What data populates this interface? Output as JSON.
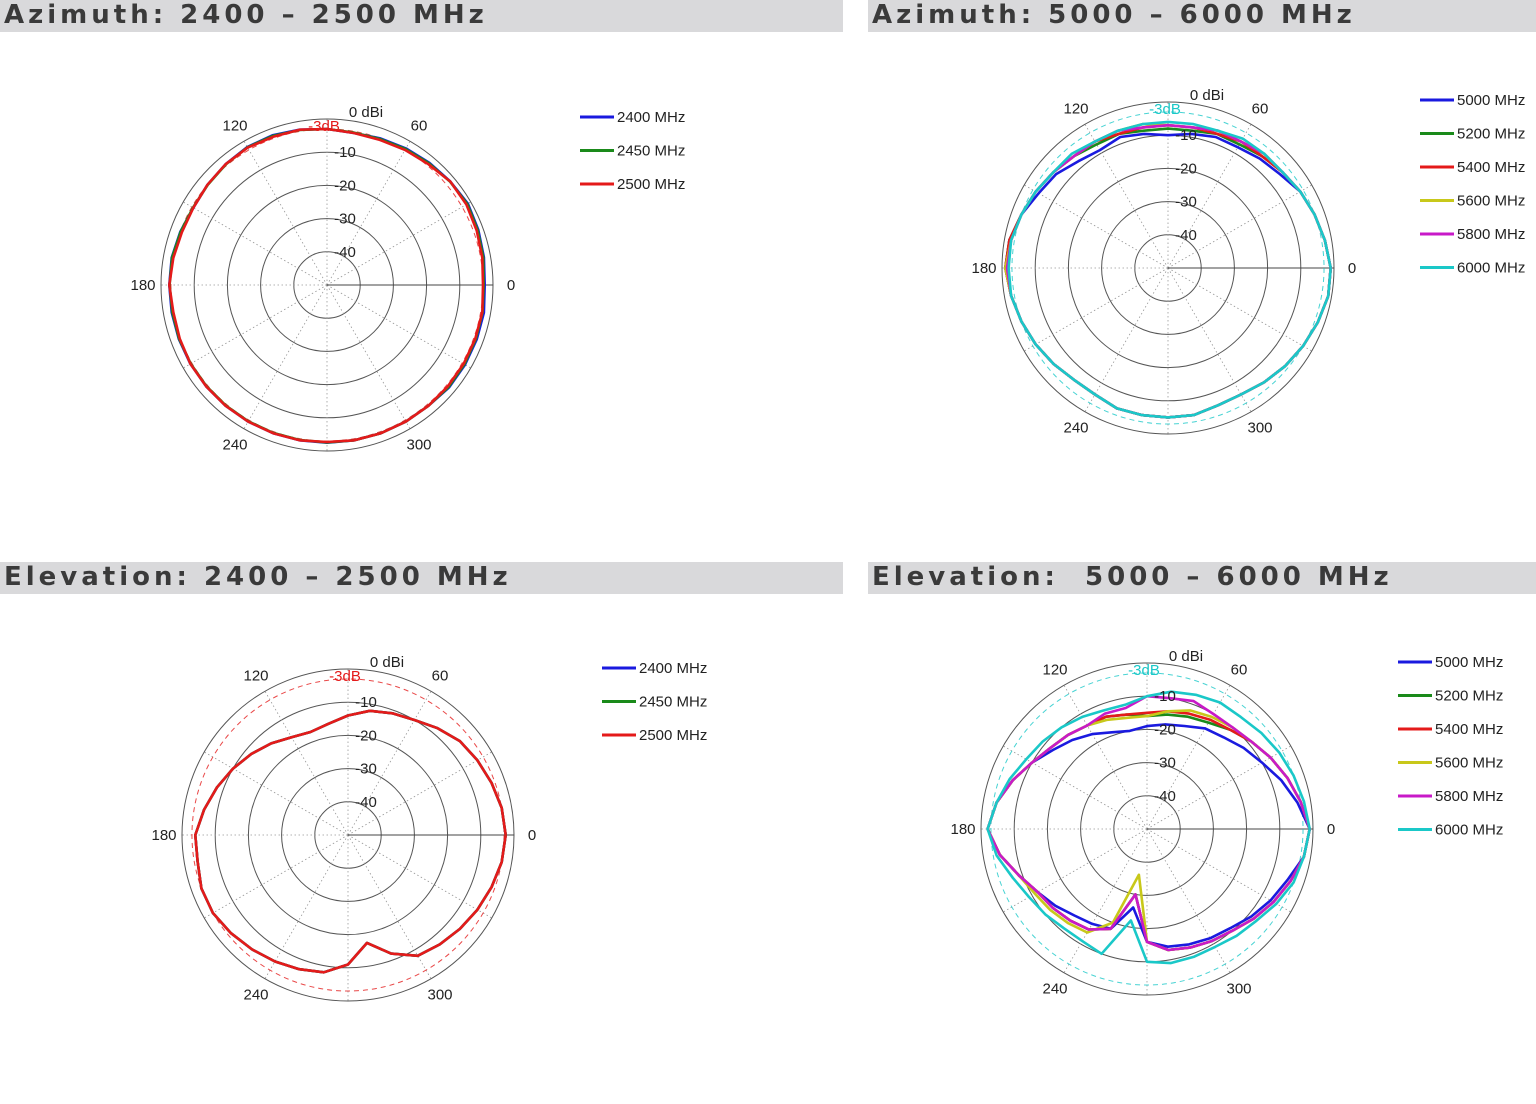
{
  "chart_data": [
    {
      "type": "polar-line",
      "title": "Azimuth: 2400 – 2500 MHz",
      "radial_unit_label": "0 dBi",
      "radial_ticks": [
        "-10",
        "-20",
        "-30",
        "-40"
      ],
      "angle_ticks": [
        "0",
        "60",
        "120",
        "180",
        "240",
        "300"
      ],
      "reference_label": "-3dB",
      "reference_value": -3,
      "rlim": [
        -50,
        0
      ],
      "grid": true,
      "legend_position": "right",
      "series": [
        {
          "name": "2400 MHz",
          "color": "#1a1adf",
          "values": [
            -2.5,
            -2,
            -1.5,
            -1,
            -1.5,
            -2,
            -2.5,
            -3,
            -3.5,
            -3,
            -2.5,
            -2,
            -2,
            -2.5,
            -3,
            -3.5,
            -3,
            -2.5,
            -2.5,
            -2.5,
            -2.5,
            -2.5,
            -2.5,
            -2.5,
            -2.5,
            -2.5,
            -2.5,
            -2.5,
            -2.5,
            -2.5,
            -2.5,
            -2.5,
            -2,
            -2,
            -2,
            -2
          ]
        },
        {
          "name": "2450 MHz",
          "color": "#1a8a1a",
          "values": [
            -2.8,
            -2.2,
            -1.7,
            -1.2,
            -1.6,
            -2.2,
            -2.7,
            -3.2,
            -3.4,
            -3,
            -2.6,
            -2.2,
            -2.1,
            -2.6,
            -3.1,
            -3.4,
            -3.1,
            -2.6,
            -2.6,
            -2.7,
            -2.6,
            -2.6,
            -2.6,
            -2.6,
            -2.6,
            -2.6,
            -2.6,
            -2.6,
            -2.5,
            -2.5,
            -2.5,
            -2.5,
            -2.2,
            -2.2,
            -2.3,
            -2.4
          ]
        },
        {
          "name": "2500 MHz",
          "color": "#e41a1a",
          "values": [
            -3,
            -2.5,
            -2,
            -1.5,
            -1.5,
            -2.5,
            -3,
            -3.5,
            -3.5,
            -3,
            -2.5,
            -2.5,
            -2.2,
            -2.5,
            -3,
            -3.5,
            -3.5,
            -3,
            -2.5,
            -3,
            -2.8,
            -2.5,
            -2.5,
            -2.5,
            -2.5,
            -2.5,
            -2.5,
            -2.7,
            -2.5,
            -2.5,
            -2.5,
            -2.5,
            -2.5,
            -2.5,
            -2.5,
            -2.5
          ]
        }
      ]
    },
    {
      "type": "polar-line",
      "title": "Azimuth: 5000 – 6000 MHz",
      "radial_unit_label": "0 dBi",
      "radial_ticks": [
        "-10",
        "-20",
        "-30",
        "-40"
      ],
      "angle_ticks": [
        "0",
        "60",
        "120",
        "180",
        "240",
        "300"
      ],
      "reference_label": "-3dB",
      "reference_value": -3,
      "rlim": [
        -50,
        0
      ],
      "grid": true,
      "legend_position": "right",
      "series": [
        {
          "name": "5000 MHz",
          "color": "#1a1adf",
          "values": [
            -1,
            -2,
            -3,
            -4,
            -6,
            -7,
            -8,
            -8,
            -9,
            -10,
            -9,
            -8,
            -9,
            -8,
            -6,
            -5,
            -3,
            -1.5,
            -1,
            -2,
            -3,
            -4,
            -5,
            -6,
            -6,
            -5,
            -5,
            -5,
            -5,
            -6,
            -6,
            -5,
            -4,
            -3,
            -2,
            -1
          ]
        },
        {
          "name": "5200 MHz",
          "color": "#1a8a1a",
          "values": [
            -1,
            -2,
            -3,
            -4,
            -5,
            -6,
            -7,
            -7,
            -8,
            -8,
            -8,
            -7,
            -7,
            -6,
            -5,
            -4,
            -3,
            -1.5,
            -1,
            -2,
            -3,
            -4,
            -5,
            -6,
            -6,
            -5,
            -5,
            -5,
            -5,
            -6,
            -6,
            -5,
            -4,
            -3,
            -2,
            -1
          ]
        },
        {
          "name": "5400 MHz",
          "color": "#e41a1a",
          "values": [
            -1,
            -2,
            -3,
            -4,
            -5,
            -6,
            -6,
            -7,
            -7,
            -7,
            -7,
            -7,
            -6,
            -6,
            -5,
            -4,
            -3,
            -1.5,
            -1,
            -2,
            -3,
            -4,
            -5,
            -6,
            -6,
            -5,
            -5,
            -5,
            -5,
            -6,
            -6,
            -5,
            -4,
            -3,
            -2,
            -1
          ]
        },
        {
          "name": "5600 MHz",
          "color": "#c8c81a",
          "values": [
            -1,
            -2,
            -3,
            -4,
            -5,
            -5,
            -6,
            -6,
            -7,
            -7,
            -6,
            -6,
            -6,
            -6,
            -5,
            -4,
            -3,
            -2,
            -1,
            -2,
            -3,
            -4,
            -5,
            -6,
            -6,
            -5,
            -5,
            -5,
            -5,
            -6,
            -6,
            -5,
            -4,
            -3,
            -2,
            -1
          ]
        },
        {
          "name": "5800 MHz",
          "color": "#c81ac8",
          "values": [
            -1,
            -2,
            -3,
            -4,
            -5,
            -5,
            -6,
            -6,
            -7,
            -7,
            -7,
            -6,
            -6,
            -6,
            -5,
            -4,
            -3,
            -2,
            -1.5,
            -2,
            -3,
            -4,
            -5,
            -6,
            -6,
            -5,
            -5,
            -5,
            -5,
            -6,
            -6,
            -5,
            -4,
            -3,
            -2,
            -1
          ]
        },
        {
          "name": "6000 MHz",
          "color": "#1ac8c8",
          "values": [
            -1,
            -2,
            -3,
            -4,
            -5,
            -5,
            -5,
            -6,
            -6,
            -6,
            -6,
            -6,
            -6,
            -5,
            -5,
            -4,
            -3,
            -2,
            -2,
            -2,
            -3,
            -4,
            -5,
            -6,
            -6,
            -5,
            -5,
            -5,
            -5,
            -6,
            -6,
            -5,
            -4,
            -3,
            -2,
            -1
          ]
        }
      ]
    },
    {
      "type": "polar-line",
      "title": "Elevation: 2400 – 2500 MHz",
      "radial_unit_label": "0 dBi",
      "radial_ticks": [
        "-10",
        "-20",
        "-30",
        "-40"
      ],
      "angle_ticks": [
        "0",
        "60",
        "120",
        "180",
        "240",
        "300"
      ],
      "reference_label": "-3dB",
      "reference_value": -3,
      "rlim": [
        -50,
        0
      ],
      "grid": true,
      "legend_position": "right",
      "series": [
        {
          "name": "2400 MHz",
          "color": "#1a1adf",
          "values": [
            -2.5,
            -3,
            -4,
            -5,
            -6,
            -8,
            -10,
            -11,
            -12,
            -14,
            -16,
            -17,
            -16,
            -14,
            -12,
            -10,
            -8,
            -6,
            -4,
            -4,
            -3,
            -3,
            -4,
            -5,
            -6,
            -7,
            -8,
            -11,
            -17,
            -12,
            -8,
            -7,
            -6,
            -5,
            -4,
            -3
          ]
        },
        {
          "name": "2450 MHz",
          "color": "#1a8a1a",
          "values": [
            -2.5,
            -3,
            -4,
            -5,
            -6,
            -8,
            -10,
            -11,
            -12,
            -14,
            -16,
            -17,
            -16,
            -14,
            -12,
            -10,
            -8,
            -6,
            -4,
            -4,
            -3,
            -3,
            -4,
            -5,
            -6,
            -7,
            -8,
            -11,
            -17,
            -12,
            -8,
            -7,
            -6,
            -5,
            -4,
            -3
          ]
        },
        {
          "name": "2500 MHz",
          "color": "#e41a1a",
          "values": [
            -2.5,
            -3,
            -4,
            -5,
            -6,
            -8,
            -10,
            -11,
            -12,
            -14,
            -16,
            -17,
            -16,
            -14,
            -12,
            -10,
            -8,
            -6,
            -4,
            -4,
            -3,
            -3,
            -4,
            -5,
            -6,
            -7,
            -8,
            -11,
            -17,
            -12,
            -8,
            -7,
            -6,
            -5,
            -4,
            -3
          ]
        }
      ]
    },
    {
      "type": "polar-line",
      "title": "Elevation:  5000 – 6000 MHz",
      "radial_unit_label": "0 dBi",
      "radial_ticks": [
        "-10",
        "-20",
        "-30",
        "-40"
      ],
      "angle_ticks": [
        "0",
        "60",
        "120",
        "180",
        "240",
        "300"
      ],
      "reference_label": "-3dB",
      "reference_value": -3,
      "rlim": [
        -50,
        0
      ],
      "grid": true,
      "legend_position": "right",
      "series": [
        {
          "name": "5000 MHz",
          "color": "#1a1adf",
          "values": [
            -1,
            -4,
            -7,
            -10,
            -12,
            -14,
            -15,
            -17,
            -18,
            -19,
            -20,
            -19,
            -17,
            -15,
            -13,
            -10,
            -7,
            -4,
            -2,
            -5,
            -9,
            -12,
            -14,
            -16,
            -17,
            -18,
            -26,
            -16,
            -14,
            -13,
            -12,
            -11,
            -9,
            -7,
            -5,
            -2
          ]
        },
        {
          "name": "5200 MHz",
          "color": "#1a8a1a",
          "values": [
            -1,
            -3,
            -5,
            -7,
            -9,
            -11,
            -13,
            -14,
            -15,
            -16,
            -15,
            -14,
            -14,
            -13,
            -12,
            -10,
            -7,
            -4,
            -2,
            -5,
            -9,
            -12,
            -13,
            -14,
            -15,
            -18,
            -30,
            -16,
            -13,
            -12,
            -11,
            -10,
            -8,
            -6,
            -4,
            -2
          ]
        },
        {
          "name": "5400 MHz",
          "color": "#e41a1a",
          "values": [
            -1,
            -3,
            -5,
            -7,
            -9,
            -11,
            -12,
            -13,
            -14,
            -15,
            -15,
            -14,
            -14,
            -13,
            -12,
            -10,
            -7,
            -4,
            -2,
            -5,
            -9,
            -12,
            -13,
            -14,
            -15,
            -18,
            -30,
            -16,
            -13,
            -12,
            -11,
            -10,
            -8,
            -6,
            -4,
            -2
          ]
        },
        {
          "name": "5600 MHz",
          "color": "#c8c81a",
          "values": [
            -1,
            -3,
            -5,
            -7,
            -9,
            -10,
            -11,
            -12,
            -14,
            -16,
            -16,
            -15,
            -14,
            -13,
            -12,
            -10,
            -7,
            -4,
            -2,
            -5,
            -9,
            -11,
            -12,
            -13,
            -14,
            -20,
            -36,
            -16,
            -13,
            -12,
            -11,
            -10,
            -8,
            -6,
            -4,
            -2
          ]
        },
        {
          "name": "5800 MHz",
          "color": "#c81ac8",
          "values": [
            -1,
            -3,
            -5,
            -7,
            -9,
            -10,
            -10,
            -9,
            -10,
            -10,
            -13,
            -13,
            -14,
            -13,
            -12,
            -10,
            -7,
            -4,
            -2,
            -5,
            -9,
            -12,
            -13,
            -14,
            -15,
            -18,
            -30,
            -16,
            -13,
            -12,
            -11,
            -10,
            -8,
            -6,
            -4,
            -2
          ]
        },
        {
          "name": "6000 MHz",
          "color": "#1ac8c8",
          "values": [
            -1,
            -2,
            -3,
            -4,
            -5,
            -6,
            -6,
            -7,
            -8,
            -10,
            -12,
            -12,
            -11,
            -10,
            -9,
            -8,
            -6,
            -4,
            -2,
            -4,
            -7,
            -9,
            -10,
            -11,
            -11,
            -10,
            -22,
            -10,
            -9,
            -9,
            -9,
            -8,
            -7,
            -5,
            -3,
            -2
          ]
        }
      ]
    }
  ]
}
